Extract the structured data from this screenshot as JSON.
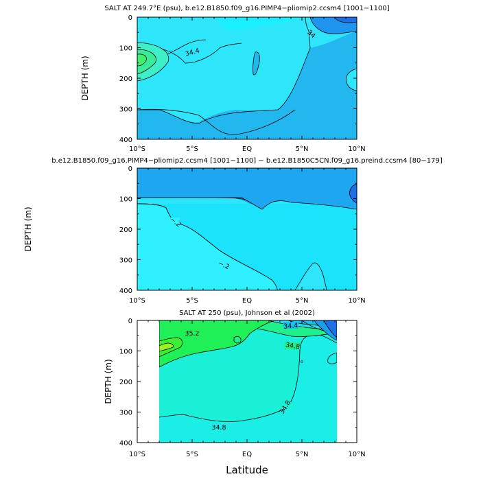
{
  "figure": {
    "x_axis_label": "Latitude",
    "x_ticks": [
      "10°S",
      "5°S",
      "EQ",
      "5°N",
      "10°N"
    ],
    "y_ticks": [
      "0",
      "100",
      "200",
      "300",
      "400"
    ]
  },
  "chart_data": [
    {
      "type": "heatmap",
      "title": "SALT AT 249.7°E (psu), b.e12.B1850.f09_g16.PIMP4−pliomip2.ccsm4 [1001−1100]",
      "xlabel": "",
      "ylabel": "DEPTH (m)",
      "xlim": [
        -10,
        10
      ],
      "ylim": [
        400,
        0
      ],
      "x_tick_values": [
        -10,
        -5,
        0,
        5,
        10
      ],
      "y_tick_values": [
        0,
        100,
        200,
        300,
        400
      ],
      "contour_labels": [
        {
          "text": "34.4",
          "lat": -5.2,
          "depth": 118
        },
        {
          "text": "34",
          "lat": 5.5,
          "depth": 55
        }
      ]
    },
    {
      "type": "heatmap",
      "title": "b.e12.B1850.f09_g16.PIMP4−pliomip2.ccsm4 [1001−1100] − b.e12.B1850C5CN.f09_g16.preind.ccsm4 [80−179]",
      "xlabel": "",
      "ylabel": "DEPTH (m)",
      "xlim": [
        -10,
        10
      ],
      "ylim": [
        400,
        0
      ],
      "x_tick_values": [
        -10,
        -5,
        0,
        5,
        10
      ],
      "y_tick_values": [
        0,
        100,
        200,
        300,
        400
      ],
      "contour_labels": [
        {
          "text": "−.2",
          "lat": -7.2,
          "depth": 195
        },
        {
          "text": "−.2",
          "lat": -2.2,
          "depth": 343
        }
      ]
    },
    {
      "type": "heatmap",
      "title": "SALT AT 250 (psu), Johnson et al (2002)",
      "xlabel": "Latitude",
      "ylabel": "DEPTH (m)",
      "xlim": [
        -10,
        10
      ],
      "ylim": [
        400,
        0
      ],
      "x_tick_values": [
        -10,
        -5,
        0,
        5,
        10
      ],
      "y_tick_values": [
        0,
        100,
        200,
        300,
        400
      ],
      "data_extent_lat": [
        -8,
        8.3
      ],
      "contour_labels": [
        {
          "text": "35.2",
          "lat": -5.4,
          "depth": 42
        },
        {
          "text": "34.4",
          "lat": 4.6,
          "depth": 18
        },
        {
          "text": "34.8",
          "lat": 4.8,
          "depth": 82
        },
        {
          "text": "34.8",
          "lat": 3.7,
          "depth": 276
        },
        {
          "text": "34.8",
          "lat": -5.0,
          "depth": 345
        }
      ]
    }
  ]
}
